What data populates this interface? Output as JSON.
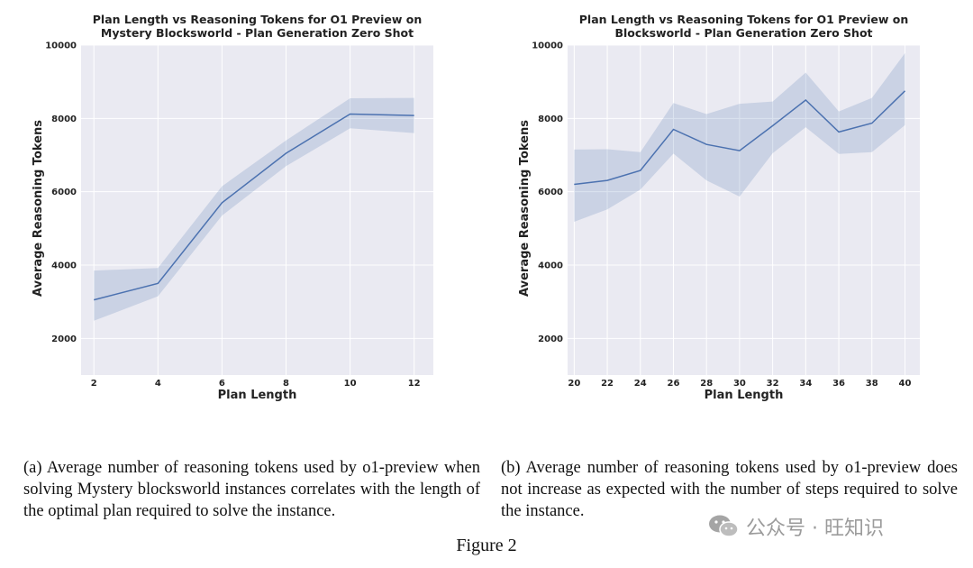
{
  "chart_data": [
    {
      "type": "line",
      "title_lines": [
        "Plan Length vs Reasoning Tokens for O1 Preview on",
        "Mystery Blocksworld - Plan Generation Zero Shot"
      ],
      "xlabel": "Plan Length",
      "ylabel": "Average Reasoning Tokens",
      "x": [
        2,
        4,
        6,
        8,
        10,
        12
      ],
      "y": [
        3050,
        3500,
        5700,
        7050,
        8120,
        8080
      ],
      "ci_lower": [
        2480,
        3150,
        5350,
        6700,
        7730,
        7600
      ],
      "ci_upper": [
        3850,
        3920,
        6150,
        7400,
        8550,
        8560
      ],
      "xlim": [
        1.6,
        12.6
      ],
      "ylim": [
        1000,
        10000
      ],
      "xticks": [
        2,
        4,
        6,
        8,
        10,
        12
      ],
      "yticks": [
        2000,
        4000,
        6000,
        8000,
        10000
      ],
      "grid": true,
      "color": "#4c72b0"
    },
    {
      "type": "line",
      "title_lines": [
        "Plan Length vs Reasoning Tokens for O1 Preview on",
        "Blocksworld - Plan Generation Zero Shot"
      ],
      "xlabel": "Plan Length",
      "ylabel": "Average Reasoning Tokens",
      "x": [
        20,
        22,
        24,
        26,
        28,
        30,
        32,
        34,
        36,
        38,
        40
      ],
      "y": [
        6200,
        6310,
        6580,
        7700,
        7290,
        7120,
        7800,
        8500,
        7630,
        7870,
        8750
      ],
      "ci_lower": [
        5180,
        5520,
        6060,
        7040,
        6310,
        5870,
        7050,
        7760,
        7030,
        7080,
        7820
      ],
      "ci_upper": [
        7150,
        7160,
        7080,
        8420,
        8120,
        8400,
        8460,
        9250,
        8190,
        8560,
        9780
      ],
      "xlim": [
        19.6,
        40.9
      ],
      "ylim": [
        1000,
        10000
      ],
      "xticks": [
        20,
        22,
        24,
        26,
        28,
        30,
        32,
        34,
        36,
        38,
        40
      ],
      "yticks": [
        2000,
        4000,
        6000,
        8000,
        10000
      ],
      "grid": true,
      "color": "#4c72b0"
    }
  ],
  "captions": {
    "a": "(a) Average number of reasoning tokens used by o1-preview when solving Mystery blocksworld instances correlates with the length of the optimal plan required to solve the instance.",
    "b": "(b) Average number of reasoning tokens used by o1-preview does not increase as expected with the number of steps required to solve the instance."
  },
  "figure_label": "Figure 2",
  "watermark": {
    "text": "公众号 · 旺知识",
    "icon": "wechat-icon"
  }
}
